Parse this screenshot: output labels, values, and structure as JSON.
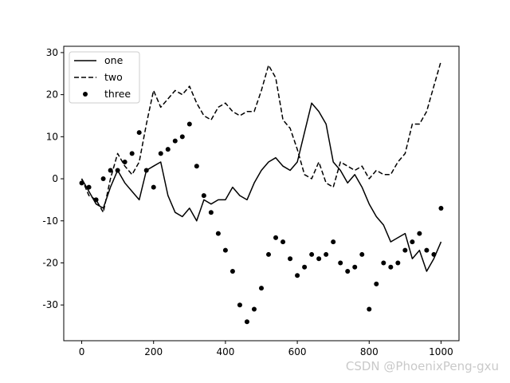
{
  "chart_data": {
    "type": "line",
    "title": "",
    "xlabel": "",
    "ylabel": "",
    "xlim": [
      -50,
      1050
    ],
    "ylim": [
      -38.5,
      31.5
    ],
    "xticks": [
      0,
      200,
      400,
      600,
      800,
      1000
    ],
    "yticks": [
      -30,
      -20,
      -10,
      0,
      10,
      20,
      30
    ],
    "grid": false,
    "legend_position": "upper-left",
    "series": [
      {
        "name": "one",
        "style": "solid-line",
        "color": "#000000",
        "x": [
          0,
          20,
          40,
          60,
          80,
          100,
          120,
          140,
          160,
          180,
          200,
          220,
          240,
          260,
          280,
          300,
          320,
          340,
          360,
          380,
          400,
          420,
          440,
          460,
          480,
          500,
          520,
          540,
          560,
          580,
          600,
          620,
          640,
          660,
          680,
          700,
          720,
          740,
          760,
          780,
          800,
          820,
          840,
          860,
          880,
          900,
          920,
          940,
          960,
          980,
          1000
        ],
        "y": [
          0,
          -3,
          -6,
          -7,
          -2,
          2,
          -1,
          -3,
          -5,
          2,
          3,
          4,
          -4,
          -8,
          -9,
          -7,
          -10,
          -5,
          -6,
          -5,
          -5,
          -2,
          -4,
          -5,
          -1,
          2,
          4,
          5,
          3,
          2,
          4,
          11,
          18,
          16,
          13,
          4,
          2,
          -1,
          1,
          -2,
          -6,
          -9,
          -11,
          -15,
          -14,
          -13,
          -19,
          -17,
          -22,
          -19,
          -15
        ]
      },
      {
        "name": "two",
        "style": "dashed-line",
        "color": "#000000",
        "x": [
          0,
          20,
          40,
          60,
          80,
          100,
          120,
          140,
          160,
          180,
          200,
          220,
          240,
          260,
          280,
          300,
          320,
          340,
          360,
          380,
          400,
          420,
          440,
          460,
          480,
          500,
          520,
          540,
          560,
          580,
          600,
          620,
          640,
          660,
          680,
          700,
          720,
          740,
          760,
          780,
          800,
          820,
          840,
          860,
          880,
          900,
          920,
          940,
          960,
          980,
          1000
        ],
        "y": [
          0,
          -4,
          -5,
          -8,
          0,
          6,
          3,
          1,
          4,
          13,
          21,
          17,
          19,
          21,
          20,
          22,
          18,
          15,
          14,
          17,
          18,
          16,
          15,
          16,
          16,
          21,
          27,
          24,
          14,
          12,
          7,
          1,
          0,
          4,
          -1,
          -2,
          4,
          3,
          2,
          3,
          0,
          2,
          1,
          1,
          4,
          6,
          13,
          13,
          16,
          22,
          28
        ]
      },
      {
        "name": "three",
        "style": "dots",
        "color": "#000000",
        "x": [
          0,
          20,
          40,
          60,
          80,
          100,
          120,
          140,
          160,
          180,
          200,
          220,
          240,
          260,
          280,
          300,
          320,
          340,
          360,
          380,
          400,
          420,
          440,
          460,
          480,
          500,
          520,
          540,
          560,
          580,
          600,
          620,
          640,
          660,
          680,
          700,
          720,
          740,
          760,
          780,
          800,
          820,
          840,
          860,
          880,
          900,
          920,
          940,
          960,
          980,
          1000
        ],
        "y": [
          -1,
          -2,
          -5,
          0,
          2,
          2,
          4,
          6,
          11,
          2,
          -2,
          6,
          7,
          9,
          10,
          13,
          3,
          -4,
          -8,
          -13,
          -17,
          -22,
          -30,
          -34,
          -31,
          -26,
          -18,
          -14,
          -15,
          -19,
          -23,
          -21,
          -18,
          -19,
          -18,
          -15,
          -20,
          -22,
          -21,
          -18,
          -31,
          -25,
          -20,
          -21,
          -20,
          -17,
          -15,
          -13,
          -17,
          -18,
          -7
        ]
      }
    ]
  },
  "watermark": "CSDN @PhoenixPeng-gxu"
}
